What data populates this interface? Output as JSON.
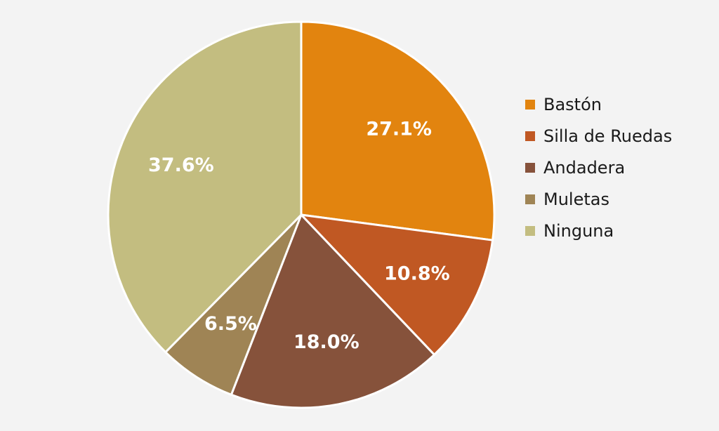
{
  "chart_data": {
    "type": "pie",
    "categories": [
      "Bastón",
      "Silla de Ruedas",
      "Andadera",
      "Muletas",
      "Ninguna"
    ],
    "values": [
      27.1,
      10.8,
      18.0,
      6.5,
      37.6
    ],
    "labels": [
      "27.1%",
      "10.8%",
      "18.0%",
      "6.5%",
      "37.6%"
    ],
    "colors": [
      "#e2840f",
      "#c05823",
      "#86523b",
      "#9f8455",
      "#c3bd80"
    ],
    "legend_position": "right"
  }
}
